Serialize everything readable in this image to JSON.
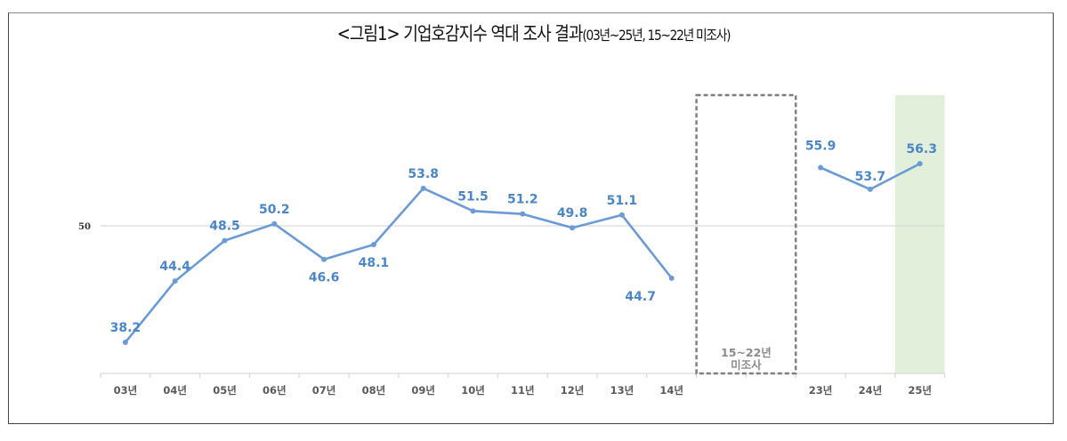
{
  "title": {
    "main": "<그림1> 기업호감지수 역대 조사 결과",
    "sub": "(03년~25년, 15~22년 미조사)"
  },
  "colors": {
    "line": "#6a9bd6",
    "label": "#4a86c8",
    "gridline": "#d9d9d9",
    "highlight_fill": "#e2efda",
    "gap_border": "#7f7f7f"
  },
  "gap_box": {
    "line1": "15~22년",
    "line2": "미조사"
  },
  "chart_data": {
    "type": "line",
    "title": "<그림1> 기업호감지수 역대 조사 결과(03년~25년, 15~22년 미조사)",
    "xlabel": "",
    "ylabel": "",
    "categories": [
      "03년",
      "04년",
      "05년",
      "06년",
      "07년",
      "08년",
      "09년",
      "10년",
      "11년",
      "12년",
      "13년",
      "14년",
      "23년",
      "24년",
      "25년"
    ],
    "series": [
      {
        "name": "기업호감지수",
        "values": [
          38.2,
          44.4,
          48.5,
          50.2,
          46.6,
          48.1,
          53.8,
          51.5,
          51.2,
          49.8,
          51.1,
          44.7,
          55.9,
          53.7,
          56.3
        ]
      }
    ],
    "reference_line": {
      "y": 50,
      "label": "50"
    },
    "annotations": [
      {
        "type": "dashed-box",
        "range": "15~22년",
        "text": "15~22년 미조사"
      },
      {
        "type": "highlight",
        "category": "25년"
      }
    ],
    "grid": false,
    "legend": "none"
  }
}
